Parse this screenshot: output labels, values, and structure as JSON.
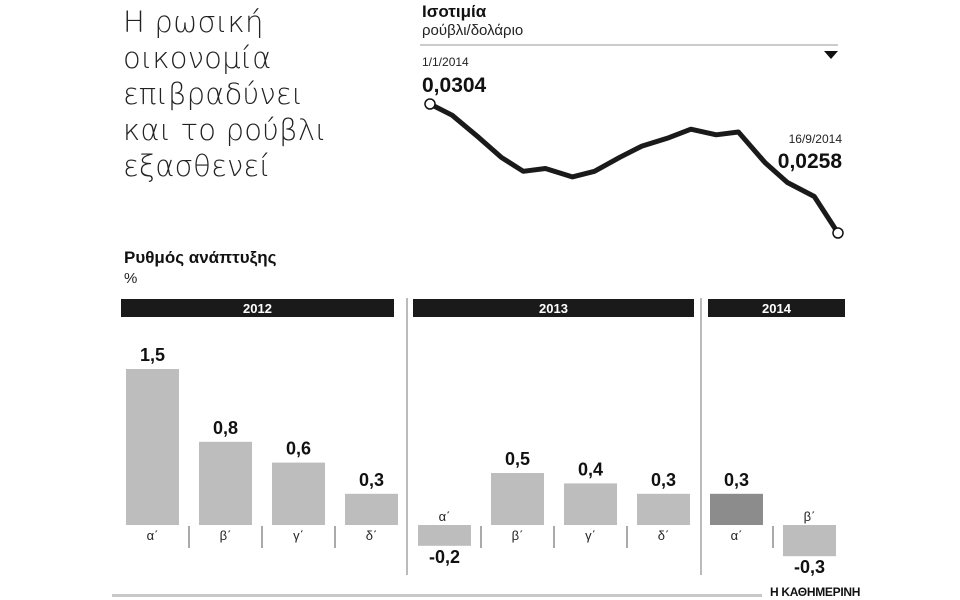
{
  "headline": {
    "lines": [
      "Η ρωσική",
      "οικονομία",
      "επιβραδύνει",
      "και το ρούβλι",
      "εξασθενεί"
    ]
  },
  "source": "Η ΚΑΘΗΜΕΡΙΝΗ",
  "colors": {
    "bar": "#bdbdbd",
    "bar_latest": "#8c8c8c",
    "header_band": "#1a1a1a",
    "line": "#1a1a1a"
  },
  "chart_data": [
    {
      "type": "line",
      "title": "Ισοτιμία",
      "subtitle": "ρούβλι/δολάριο",
      "start_label": {
        "date": "1/1/2014",
        "value": "0,0304"
      },
      "end_label": {
        "date": "16/9/2014",
        "value": "0,0258"
      },
      "x": [
        "2014-01-01",
        "2014-01-15",
        "2014-02-01",
        "2014-02-15",
        "2014-03-01",
        "2014-03-15",
        "2014-04-01",
        "2014-04-15",
        "2014-05-01",
        "2014-05-15",
        "2014-06-01",
        "2014-06-15",
        "2014-07-01",
        "2014-07-15",
        "2014-08-01",
        "2014-08-15",
        "2014-09-01",
        "2014-09-16"
      ],
      "values": [
        0.0304,
        0.03,
        0.0292,
        0.0285,
        0.028,
        0.0281,
        0.0278,
        0.028,
        0.0285,
        0.0289,
        0.0292,
        0.0295,
        0.0293,
        0.0294,
        0.0283,
        0.0276,
        0.0271,
        0.0258
      ],
      "grid": false,
      "legend": "none"
    },
    {
      "type": "bar",
      "title": "Ρυθμός ανάπτυξης",
      "ylabel": "%",
      "groups": [
        {
          "year": "2012",
          "categories": [
            "α΄",
            "β΄",
            "γ΄",
            "δ΄"
          ],
          "values": [
            1.5,
            0.8,
            0.6,
            0.3
          ],
          "labels": [
            "1,5",
            "0,8",
            "0,6",
            "0,3"
          ]
        },
        {
          "year": "2013",
          "categories": [
            "α΄",
            "β΄",
            "γ΄",
            "δ΄"
          ],
          "values": [
            -0.2,
            0.5,
            0.4,
            0.3
          ],
          "labels": [
            "-0,2",
            "0,5",
            "0,4",
            "0,3"
          ]
        },
        {
          "year": "2014",
          "categories": [
            "α΄",
            "β΄"
          ],
          "values": [
            0.3,
            -0.3
          ],
          "labels": [
            "0,3",
            "-0,3"
          ]
        }
      ],
      "highlight": {
        "year": "2014",
        "index": 0
      },
      "grid": false,
      "legend": "none"
    }
  ]
}
